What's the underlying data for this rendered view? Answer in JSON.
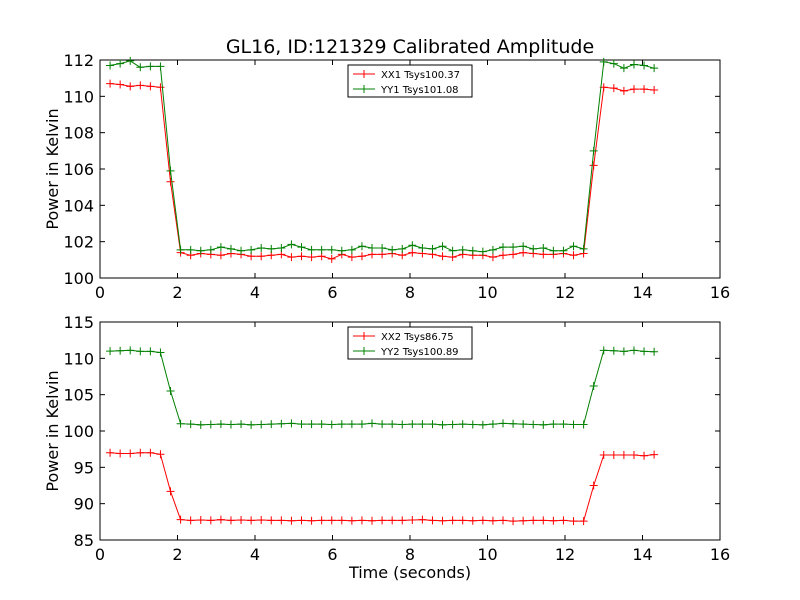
{
  "chart_data": [
    {
      "type": "line",
      "title": "GL16, ID:121329 Calibrated Amplitude",
      "xlabel": "",
      "ylabel": "Power in Kelvin",
      "xlim": [
        0,
        16
      ],
      "ylim": [
        100,
        112
      ],
      "xticks": [
        0,
        2,
        4,
        6,
        8,
        10,
        12,
        14,
        16
      ],
      "yticks": [
        100,
        102,
        104,
        106,
        108,
        110,
        112
      ],
      "legend_position": "top-center",
      "x": [
        0.26,
        0.52,
        0.78,
        1.04,
        1.3,
        1.56,
        1.82,
        2.08,
        2.34,
        2.6,
        2.86,
        3.12,
        3.38,
        3.64,
        3.9,
        4.16,
        4.42,
        4.68,
        4.94,
        5.2,
        5.46,
        5.72,
        5.98,
        6.24,
        6.5,
        6.76,
        7.02,
        7.28,
        7.54,
        7.8,
        8.06,
        8.32,
        8.58,
        8.84,
        9.1,
        9.36,
        9.62,
        9.88,
        10.14,
        10.4,
        10.66,
        10.92,
        11.18,
        11.44,
        11.7,
        11.96,
        12.22,
        12.48,
        12.74,
        13.0,
        13.26,
        13.52,
        13.78,
        14.04,
        14.3,
        14.56
      ],
      "series": [
        {
          "name": "XX1 Tsys100.37",
          "color": "#ff0000",
          "values": [
            110.7,
            110.65,
            110.55,
            110.6,
            110.55,
            110.5,
            105.3,
            101.4,
            101.25,
            101.35,
            101.3,
            101.25,
            101.35,
            101.3,
            101.2,
            101.2,
            101.25,
            101.3,
            101.15,
            101.2,
            101.15,
            101.2,
            101.05,
            101.3,
            101.15,
            101.2,
            101.3,
            101.3,
            101.35,
            101.25,
            101.4,
            101.35,
            101.3,
            101.2,
            101.15,
            101.3,
            101.25,
            101.25,
            101.15,
            101.25,
            101.3,
            101.4,
            101.35,
            101.3,
            101.3,
            101.35,
            101.25,
            101.35,
            106.2,
            110.5,
            110.45,
            110.3,
            110.4,
            110.4,
            110.35,
            null
          ]
        },
        {
          "name": "YY1 Tsys101.08",
          "color": "#008000",
          "values": [
            111.7,
            111.8,
            111.95,
            111.6,
            111.65,
            111.65,
            105.9,
            101.55,
            101.55,
            101.5,
            101.55,
            101.7,
            101.6,
            101.5,
            101.55,
            101.65,
            101.6,
            101.65,
            101.85,
            101.7,
            101.55,
            101.55,
            101.55,
            101.5,
            101.55,
            101.75,
            101.65,
            101.65,
            101.55,
            101.6,
            101.8,
            101.65,
            101.6,
            101.75,
            101.5,
            101.55,
            101.5,
            101.45,
            101.55,
            101.7,
            101.7,
            101.75,
            101.6,
            101.65,
            101.5,
            101.5,
            101.75,
            101.6,
            107.0,
            111.9,
            111.8,
            111.55,
            111.75,
            111.7,
            111.55,
            null
          ]
        }
      ]
    },
    {
      "type": "line",
      "title": "",
      "xlabel": "Time (seconds)",
      "ylabel": "Power in Kelvin",
      "xlim": [
        0,
        16
      ],
      "ylim": [
        85,
        115
      ],
      "xticks": [
        0,
        2,
        4,
        6,
        8,
        10,
        12,
        14,
        16
      ],
      "yticks": [
        85,
        90,
        95,
        100,
        105,
        110,
        115
      ],
      "legend_position": "top-center",
      "x": [
        0.26,
        0.52,
        0.78,
        1.04,
        1.3,
        1.56,
        1.82,
        2.08,
        2.34,
        2.6,
        2.86,
        3.12,
        3.38,
        3.64,
        3.9,
        4.16,
        4.42,
        4.68,
        4.94,
        5.2,
        5.46,
        5.72,
        5.98,
        6.24,
        6.5,
        6.76,
        7.02,
        7.28,
        7.54,
        7.8,
        8.06,
        8.32,
        8.58,
        8.84,
        9.1,
        9.36,
        9.62,
        9.88,
        10.14,
        10.4,
        10.66,
        10.92,
        11.18,
        11.44,
        11.7,
        11.96,
        12.22,
        12.48,
        12.74,
        13.0,
        13.26,
        13.52,
        13.78,
        14.04,
        14.3,
        14.56
      ],
      "series": [
        {
          "name": "XX2 Tsys86.75",
          "color": "#ff0000",
          "values": [
            97.0,
            96.9,
            96.9,
            97.0,
            97.0,
            96.8,
            91.7,
            87.8,
            87.7,
            87.75,
            87.7,
            87.8,
            87.7,
            87.75,
            87.7,
            87.75,
            87.7,
            87.7,
            87.65,
            87.7,
            87.65,
            87.7,
            87.7,
            87.7,
            87.65,
            87.7,
            87.65,
            87.7,
            87.7,
            87.7,
            87.75,
            87.8,
            87.7,
            87.65,
            87.7,
            87.7,
            87.65,
            87.7,
            87.65,
            87.7,
            87.6,
            87.65,
            87.7,
            87.7,
            87.65,
            87.7,
            87.6,
            87.6,
            92.5,
            96.7,
            96.7,
            96.7,
            96.7,
            96.6,
            96.75,
            null
          ]
        },
        {
          "name": "YY2 Tsys100.89",
          "color": "#008000",
          "values": [
            111.0,
            111.05,
            111.1,
            110.95,
            110.95,
            110.8,
            105.5,
            101.0,
            100.95,
            100.85,
            100.9,
            100.95,
            100.9,
            100.95,
            100.85,
            100.9,
            100.95,
            101.0,
            101.05,
            100.95,
            100.95,
            100.95,
            100.9,
            100.95,
            100.95,
            100.95,
            101.05,
            100.95,
            100.95,
            100.9,
            100.95,
            100.95,
            100.95,
            100.85,
            100.9,
            100.95,
            100.9,
            100.85,
            100.95,
            101.05,
            101.0,
            100.95,
            100.9,
            100.85,
            100.95,
            100.95,
            100.9,
            100.9,
            106.2,
            111.1,
            111.05,
            110.95,
            111.1,
            110.95,
            110.9,
            null
          ]
        }
      ]
    }
  ]
}
